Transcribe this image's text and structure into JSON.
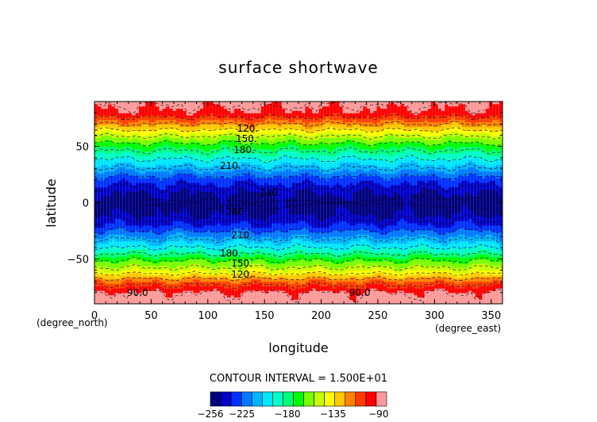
{
  "chart_data": {
    "type": "heatmap",
    "title": "surface shortwave",
    "xlabel": "longitude",
    "ylabel": "latitude",
    "x_unit": "(degree_east)",
    "y_unit": "(degree_north)",
    "xlim": [
      0,
      360
    ],
    "ylim": [
      -90,
      90
    ],
    "x_ticks": [
      "0",
      "50",
      "100",
      "150",
      "200",
      "250",
      "300",
      "350"
    ],
    "y_ticks": [
      "50",
      "0",
      "−50"
    ],
    "x_tick_values": [
      0,
      50,
      100,
      150,
      200,
      250,
      300,
      350
    ],
    "y_tick_values": [
      50,
      0,
      -50
    ],
    "contour_interval_text": "CONTOUR INTERVAL = 1.500E+01",
    "contour_interval": 15,
    "value_range": [
      -256,
      -82
    ],
    "zonal_profile": {
      "lat": [
        -90,
        -80,
        -70,
        -60,
        -50,
        -40,
        -30,
        -20,
        -10,
        0,
        10,
        20,
        30,
        40,
        50,
        60,
        70,
        80,
        90
      ],
      "value": [
        -84,
        -90,
        -112,
        -145,
        -168,
        -195,
        -215,
        -235,
        -247,
        -252,
        -245,
        -232,
        -212,
        -193,
        -172,
        -148,
        -120,
        -95,
        -88
      ]
    },
    "contour_labels": [
      {
        "text": "120.",
        "lon": 135,
        "lat": 66
      },
      {
        "text": "150.",
        "lon": 134,
        "lat": 57
      },
      {
        "text": "180.",
        "lon": 132,
        "lat": 47
      },
      {
        "text": "210.",
        "lon": 120,
        "lat": 33
      },
      {
        "text": "240.",
        "lon": 155,
        "lat": 9
      },
      {
        "text": "240.",
        "lon": 125,
        "lat": -8
      },
      {
        "text": "210.",
        "lon": 130,
        "lat": -29
      },
      {
        "text": "180.",
        "lon": 120,
        "lat": -45
      },
      {
        "text": "150.",
        "lon": 130,
        "lat": -54
      },
      {
        "text": "120.",
        "lon": 130,
        "lat": -64
      },
      {
        "text": "90.0",
        "lon": 38,
        "lat": -80
      },
      {
        "text": "90.0",
        "lon": 234,
        "lat": -80
      }
    ],
    "colorbar": {
      "colors": [
        "#00007e",
        "#0000c8",
        "#0032ff",
        "#0078ff",
        "#00b4ff",
        "#00e6ff",
        "#00ffc8",
        "#00ff78",
        "#00ff00",
        "#78ff00",
        "#c8ff00",
        "#ffff00",
        "#ffc800",
        "#ff8200",
        "#ff3c00",
        "#ff0000",
        "#ff9a9a"
      ],
      "tick_labels": [
        "−256",
        "−225",
        "−180",
        "−135",
        "−90"
      ],
      "tick_values": [
        -256,
        -225,
        -180,
        -135,
        -90
      ],
      "range": [
        -256,
        -82
      ]
    }
  }
}
